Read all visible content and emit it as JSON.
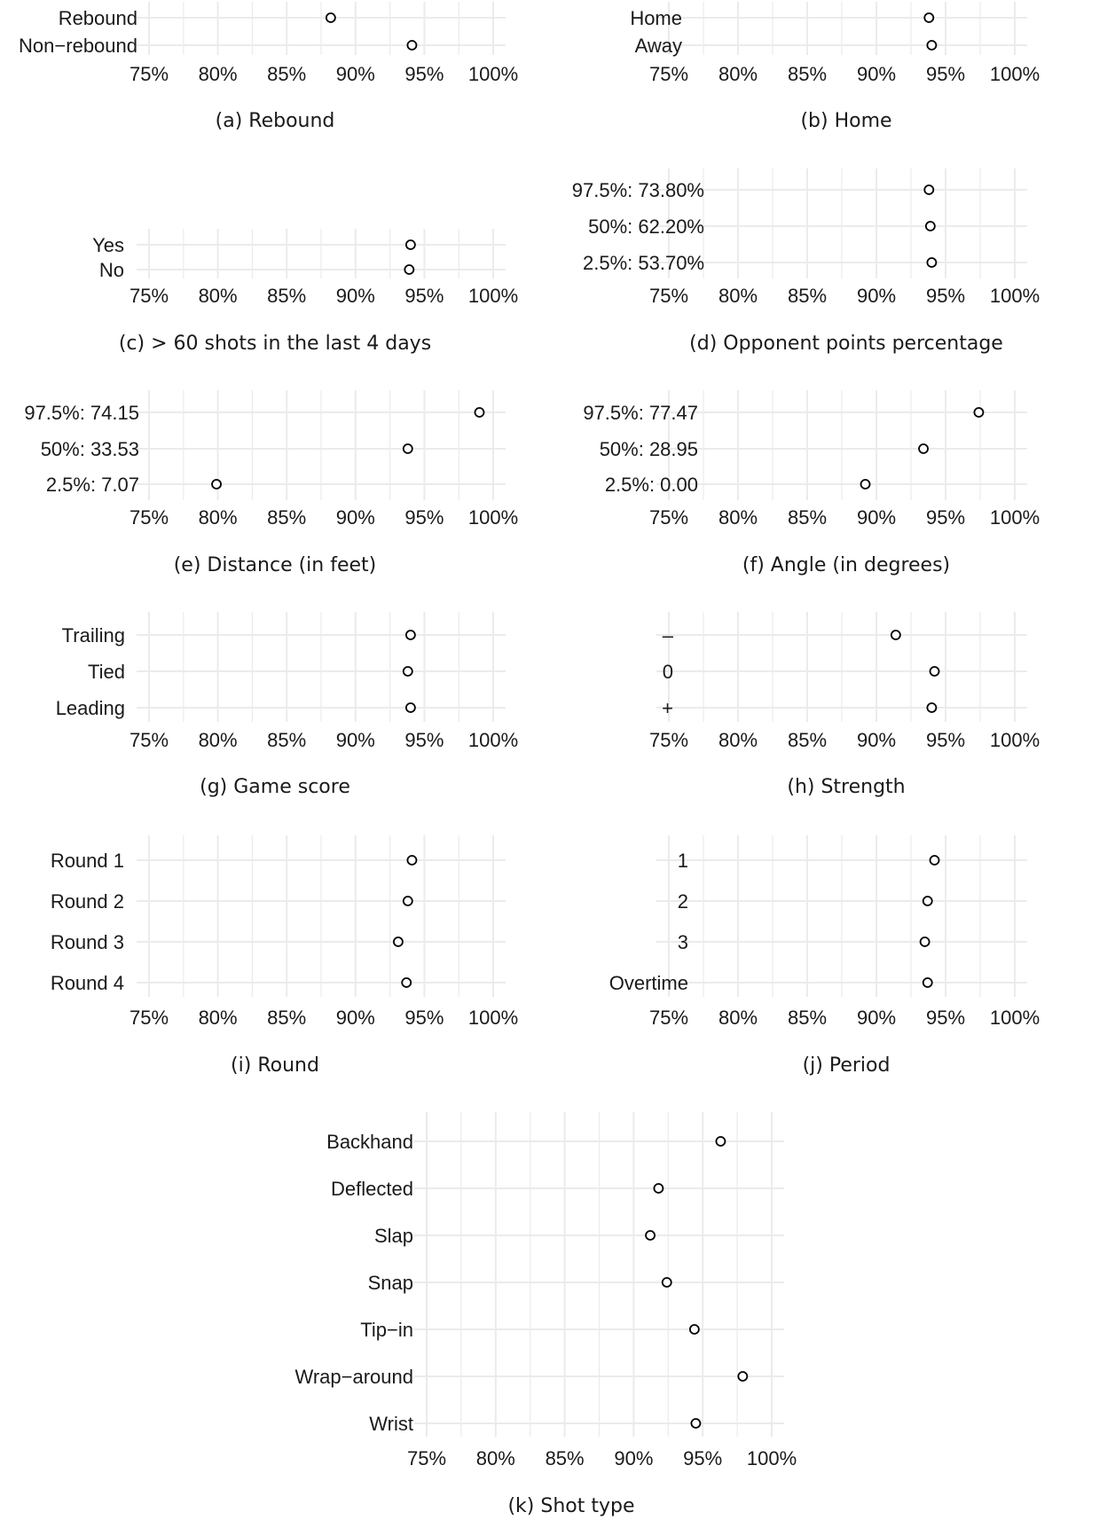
{
  "chart_data": [
    {
      "id": "a",
      "type": "scatter",
      "caption": "(a) Rebound",
      "categories": [
        "Rebound",
        "Non−rebound"
      ],
      "values": [
        88.2,
        94.1
      ],
      "xlim": [
        75,
        100
      ],
      "xticks": [
        "75%",
        "80%",
        "85%",
        "90%",
        "95%",
        "100%"
      ],
      "grid": true
    },
    {
      "id": "b",
      "type": "scatter",
      "caption": "(b) Home",
      "categories": [
        "Home",
        "Away"
      ],
      "values": [
        93.8,
        94.0
      ],
      "xlim": [
        75,
        100
      ],
      "xticks": [
        "75%",
        "80%",
        "85%",
        "90%",
        "95%",
        "100%"
      ],
      "grid": true
    },
    {
      "id": "c",
      "type": "scatter",
      "caption": "(c) > 60 shots in the last 4 days",
      "categories": [
        "Yes",
        "No"
      ],
      "values": [
        94.0,
        93.9
      ],
      "xlim": [
        75,
        100
      ],
      "xticks": [
        "75%",
        "80%",
        "85%",
        "90%",
        "95%",
        "100%"
      ],
      "grid": true
    },
    {
      "id": "d",
      "type": "scatter",
      "caption": "(d) Opponent points percentage",
      "categories": [
        "97.5%: 73.80%",
        "50%: 62.20%",
        "2.5%: 53.70%"
      ],
      "values": [
        93.8,
        93.9,
        94.0
      ],
      "xlim": [
        75,
        100
      ],
      "xticks": [
        "75%",
        "80%",
        "85%",
        "90%",
        "95%",
        "100%"
      ],
      "grid": true
    },
    {
      "id": "e",
      "type": "scatter",
      "caption": "(e) Distance (in feet)",
      "categories": [
        "97.5%: 74.15",
        "50%: 33.53",
        "2.5%:  7.07"
      ],
      "values": [
        99.0,
        93.8,
        79.9
      ],
      "xlim": [
        75,
        100
      ],
      "xticks": [
        "75%",
        "80%",
        "85%",
        "90%",
        "95%",
        "100%"
      ],
      "grid": true
    },
    {
      "id": "f",
      "type": "scatter",
      "caption": "(f) Angle (in degrees)",
      "categories": [
        "97.5%: 77.47",
        "50%: 28.95",
        "2.5%:  0.00"
      ],
      "values": [
        97.4,
        93.4,
        89.2
      ],
      "xlim": [
        75,
        100
      ],
      "xticks": [
        "75%",
        "80%",
        "85%",
        "90%",
        "95%",
        "100%"
      ],
      "grid": true
    },
    {
      "id": "g",
      "type": "scatter",
      "caption": "(g) Game score",
      "categories": [
        "Trailing",
        "Tied",
        "Leading"
      ],
      "values": [
        94.0,
        93.8,
        94.0
      ],
      "xlim": [
        75,
        100
      ],
      "xticks": [
        "75%",
        "80%",
        "85%",
        "90%",
        "95%",
        "100%"
      ],
      "grid": true
    },
    {
      "id": "h",
      "type": "scatter",
      "caption": "(h) Strength",
      "categories": [
        "–",
        "0",
        "+"
      ],
      "values": [
        91.4,
        94.2,
        94.0
      ],
      "xlim": [
        75,
        100
      ],
      "xticks": [
        "75%",
        "80%",
        "85%",
        "90%",
        "95%",
        "100%"
      ],
      "grid": true
    },
    {
      "id": "i",
      "type": "scatter",
      "caption": "(i) Round",
      "categories": [
        "Round 1",
        "Round 2",
        "Round 3",
        "Round 4"
      ],
      "values": [
        94.1,
        93.8,
        93.1,
        93.7
      ],
      "xlim": [
        75,
        100
      ],
      "xticks": [
        "75%",
        "80%",
        "85%",
        "90%",
        "95%",
        "100%"
      ],
      "grid": true
    },
    {
      "id": "j",
      "type": "scatter",
      "caption": "(j) Period",
      "categories": [
        "1",
        "2",
        "3",
        "Overtime"
      ],
      "values": [
        94.2,
        93.7,
        93.5,
        93.7
      ],
      "xlim": [
        75,
        100
      ],
      "xticks": [
        "75%",
        "80%",
        "85%",
        "90%",
        "95%",
        "100%"
      ],
      "grid": true
    },
    {
      "id": "k",
      "type": "scatter",
      "caption": "(k) Shot type",
      "categories": [
        "Backhand",
        "Deflected",
        "Slap",
        "Snap",
        "Tip−in",
        "Wrap−around",
        "Wrist"
      ],
      "values": [
        96.3,
        91.8,
        91.2,
        92.4,
        94.4,
        97.9,
        94.5
      ],
      "xlim": [
        75,
        100
      ],
      "xticks": [
        "75%",
        "80%",
        "85%",
        "90%",
        "95%",
        "100%"
      ],
      "grid": true
    }
  ]
}
